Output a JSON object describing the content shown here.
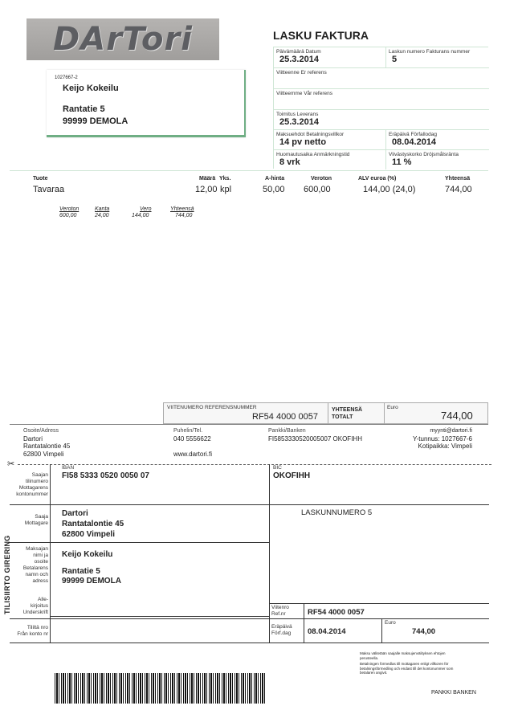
{
  "logo": "DArTori",
  "customer": {
    "id": "1027667-2",
    "name": "Keijo Kokeilu",
    "street": "Rantatie 5",
    "city": "99999 DEMOLA"
  },
  "invoice": {
    "title": "LASKU FAKTURA",
    "date_label": "Päivämäärä  Datum",
    "date": "25.3.2014",
    "number_label": "Laskun numero  Fakturans nummer",
    "number": "5",
    "your_ref_label": "Viitteenne  Er referens",
    "our_ref_label": "Viitteemme  Vår referens",
    "delivery_label": "Toimitus  Leverans",
    "delivery": "25.3.2014",
    "terms_label": "Maksuehdot Betalningsvillkor",
    "terms": "14 pv netto",
    "due_label": "Eräpäivä  Förfallodag",
    "due": "08.04.2014",
    "notice_label": "Huomautusaika  Anmärkningstid",
    "notice": "8 vrk",
    "interest_label": "Viivästyskorko  Dröjsmålsränta",
    "interest": "11 %"
  },
  "table": {
    "headers": {
      "product": "Tuote",
      "qty": "Määrä",
      "unit": "Yks.",
      "price": "A-hinta",
      "net": "Veroton",
      "vat": "ALV euroa (%)",
      "total": "Yhteensä"
    },
    "rows": [
      {
        "product": "Tavaraa",
        "qty": "12,00",
        "unit": "kpl",
        "price": "50,00",
        "net": "600,00",
        "vat": "144,00 (24,0)",
        "total": "744,00"
      }
    ]
  },
  "summary": {
    "headers": [
      "Veroton",
      "Kanta",
      "Vero",
      "Yhteensä"
    ],
    "values": [
      "600,00",
      "24,00",
      "144,00",
      "744,00"
    ]
  },
  "payment_bar": {
    "ref_label": "VIITENUMERO  REFERENSNUMMER",
    "ref": "RF54 4000 0057",
    "total_label1": "YHTEENSÄ",
    "total_label2": "TOTALT",
    "currency": "Euro",
    "amount": "744,00"
  },
  "company": {
    "address_label": "Osoite/Adress",
    "name": "Dartori",
    "street": "Rantatalontie 45",
    "city": "62800 Vimpeli",
    "phone_label": "Puhelin/Tel.",
    "phone": "040 5556622",
    "web": "www.dartori.fi",
    "bank_label": "Pankki/Banken",
    "bank": "FI5853330520005007 OKOFIHH",
    "email": "myynti@dartori.fi",
    "business_id": "Y-tunnus: 1027667-6",
    "domicile": "Kotipaikka: Vimpeli"
  },
  "slip": {
    "side_title": "TILISIIRTO GIRERING",
    "account_label": [
      "Saajan",
      "tilinumero",
      "Mottagarens",
      "kontonummer"
    ],
    "iban_label": "IBAN",
    "iban": "FI58 5333 0520 0050 07",
    "bic_label": "BIC",
    "bic": "OKOFIHH",
    "payee_label": [
      "Saaja",
      "Mottagare"
    ],
    "payee": [
      "Dartori",
      "Rantatalontie 45",
      "62800 Vimpeli"
    ],
    "invoice_note": "LASKUNNUMERO 5",
    "payer_label": [
      "Maksajan",
      "nimi ja",
      "osoite",
      "Betalarens",
      "namn och",
      "adress"
    ],
    "payer": [
      "Keijo Kokeilu",
      "Rantatie 5",
      "99999 DEMOLA"
    ],
    "signature_label": [
      "Alle-",
      "kirjoitus",
      "Underskrift"
    ],
    "ref_label": [
      "Viitenro",
      "Ref.nr"
    ],
    "ref": "RF54 4000 0057",
    "from_label": [
      "Tililtä nro",
      "Från konto nr"
    ],
    "due_label": [
      "Eräpäivä",
      "Förf.dag"
    ],
    "due": "08.04.2014",
    "currency": "Euro",
    "amount": "744,00",
    "terms1": "Maksu välitetään saajalle maksujenvälityksen ehtojen perusteella.",
    "terms2": "Betalningen förmedlas till mottagaren enligt villkoren för betalningsförmedling och endast till det kontonummer som betalaren angivit.",
    "bank": "PANKKI BANKEN"
  }
}
